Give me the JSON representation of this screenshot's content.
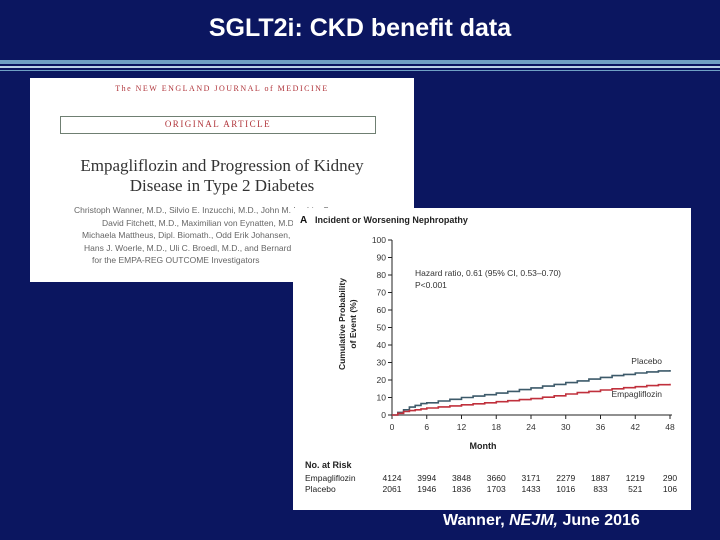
{
  "slide": {
    "title": "SGLT2i: CKD benefit data",
    "citation_author": "Wanner, ",
    "citation_journal": "NEJM,",
    "citation_date": " June 2016"
  },
  "paper": {
    "journal": "The NEW ENGLAND JOURNAL of MEDICINE",
    "article_type": "ORIGINAL ARTICLE",
    "title_line1": "Empagliflozin and Progression of Kidney",
    "title_line2": "Disease in Type 2 Diabetes",
    "author_lines": [
      "Christoph Wanner, M.D., Silvio E. Inzucchi, M.D., John M. Lachin, Sc.D.,",
      "David Fitchett, M.D., Maximilian von Eynatten, M.D.,",
      "Michaela Mattheus, Dipl. Biomath., Odd Erik Johansen, M.D.,",
      "Hans J. Woerle, M.D., Uli C. Broedl, M.D., and Bernard Zinman, M.D.,",
      "for the EMPA-REG OUTCOME Investigators",
      ""
    ]
  },
  "chart_data": {
    "type": "line",
    "panel_label": "A",
    "title": "Incident or Worsening Nephropathy",
    "xlabel": "Month",
    "ylabel_line1": "Cumulative Probability",
    "ylabel_line2": "of Event (%)",
    "xlim": [
      0,
      48
    ],
    "ylim": [
      0,
      100
    ],
    "xticks": [
      0,
      6,
      12,
      18,
      24,
      30,
      36,
      42,
      48
    ],
    "yticks": [
      0,
      10,
      20,
      30,
      40,
      50,
      60,
      70,
      80,
      90,
      100
    ],
    "annotation_line1": "Hazard ratio, 0.61 (95% CI, 0.53–0.70)",
    "annotation_line2": "P<0.001",
    "series": [
      {
        "name": "Placebo",
        "color": "#3d5a6a",
        "x": [
          0,
          1,
          2,
          3,
          4,
          5,
          6,
          8,
          10,
          12,
          14,
          16,
          18,
          20,
          22,
          24,
          26,
          28,
          30,
          32,
          34,
          36,
          38,
          40,
          42,
          44,
          46,
          48
        ],
        "y": [
          0,
          1.5,
          3,
          4.5,
          5.5,
          6.5,
          7,
          8,
          9,
          10,
          10.8,
          11.6,
          12.5,
          13.5,
          14.5,
          15.5,
          16.5,
          17.5,
          18.5,
          19.5,
          20.5,
          21.5,
          22.5,
          23.2,
          24,
          24.6,
          25.2,
          25.7
        ]
      },
      {
        "name": "Empagliflozin",
        "color": "#c0303c",
        "x": [
          0,
          1,
          2,
          3,
          4,
          5,
          6,
          8,
          10,
          12,
          14,
          16,
          18,
          20,
          22,
          24,
          26,
          28,
          30,
          32,
          34,
          36,
          38,
          40,
          42,
          44,
          46,
          48
        ],
        "y": [
          0,
          1,
          2,
          2.5,
          3,
          3.5,
          4,
          4.6,
          5.2,
          5.8,
          6.4,
          7,
          7.6,
          8.2,
          8.8,
          9.4,
          10.2,
          11,
          12,
          12.8,
          13.5,
          14.3,
          15,
          15.6,
          16.2,
          16.8,
          17.3,
          17.8
        ]
      }
    ],
    "at_risk": {
      "header": "No. at Risk",
      "rows": [
        {
          "label": "Empagliflozin",
          "values": [
            "4124",
            "3994",
            "3848",
            "3660",
            "3171",
            "2279",
            "1887",
            "1219",
            "290"
          ]
        },
        {
          "label": "Placebo",
          "values": [
            "2061",
            "1946",
            "1836",
            "1703",
            "1433",
            "1016",
            "833",
            "521",
            "106"
          ]
        }
      ]
    }
  }
}
